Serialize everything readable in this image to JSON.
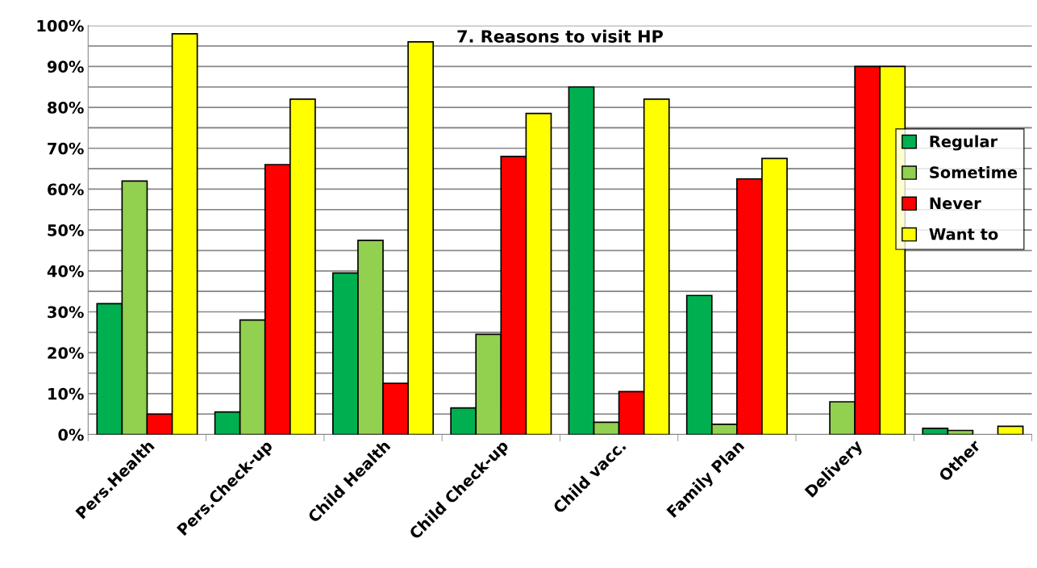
{
  "chart_data": {
    "type": "bar",
    "title": "7. Reasons to visit HP",
    "categories": [
      "Pers.Health",
      "Pers.Check-up",
      "Child Health",
      "Child Check-up",
      "Child vacc.",
      "Family Plan",
      "Delivery",
      "Other"
    ],
    "series": [
      {
        "name": "Regular",
        "color": "#00b050",
        "values": [
          32,
          5.5,
          39.5,
          6.5,
          85,
          34,
          null,
          1.5
        ]
      },
      {
        "name": "Sometime",
        "color": "#92d050",
        "values": [
          62,
          28,
          47.5,
          24.5,
          3,
          2.5,
          8,
          1
        ]
      },
      {
        "name": "Never",
        "color": "#ff0000",
        "values": [
          5,
          66,
          12.5,
          68,
          10.5,
          62.5,
          90,
          null
        ]
      },
      {
        "name": "Want to",
        "color": "#ffff00",
        "values": [
          98,
          82,
          96,
          78.5,
          82,
          67.5,
          90,
          2
        ]
      }
    ],
    "ylim": [
      0,
      100
    ],
    "yticks": [
      {
        "value": 0,
        "label": "0%"
      },
      {
        "value": 5,
        "label": null
      },
      {
        "value": 10,
        "label": "10%"
      },
      {
        "value": 15,
        "label": null
      },
      {
        "value": 20,
        "label": "20%"
      },
      {
        "value": 25,
        "label": null
      },
      {
        "value": 30,
        "label": "30%"
      },
      {
        "value": 35,
        "label": null
      },
      {
        "value": 40,
        "label": "40%"
      },
      {
        "value": 45,
        "label": null
      },
      {
        "value": 50,
        "label": "50%"
      },
      {
        "value": 55,
        "label": null
      },
      {
        "value": 60,
        "label": "60%"
      },
      {
        "value": 65,
        "label": null
      },
      {
        "value": 70,
        "label": "70%"
      },
      {
        "value": 75,
        "label": null
      },
      {
        "value": 80,
        "label": "80%"
      },
      {
        "value": 85,
        "label": null
      },
      {
        "value": 90,
        "label": "90%"
      },
      {
        "value": 95,
        "label": null
      },
      {
        "value": 100,
        "label": "100%"
      }
    ],
    "grid": "y",
    "legend": "right"
  }
}
